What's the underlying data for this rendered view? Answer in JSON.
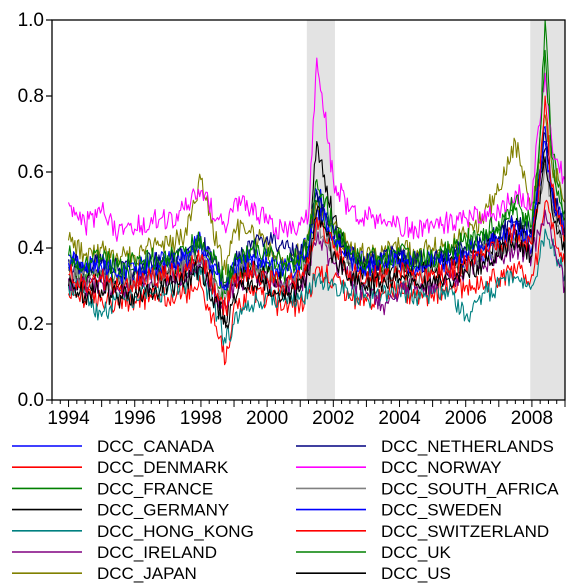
{
  "chart_data": {
    "type": "line",
    "title": "",
    "xlabel": "",
    "ylabel": "",
    "xlim": [
      1993.5,
      2009.0
    ],
    "ylim": [
      0.0,
      1.0
    ],
    "xticks": [
      1994,
      1996,
      1998,
      2000,
      2002,
      2004,
      2006,
      2008
    ],
    "xtick_labels": [
      "1994",
      "1996",
      "1998",
      "2000",
      "2002",
      "2004",
      "2006",
      "2008"
    ],
    "yticks": [
      0.0,
      0.2,
      0.4,
      0.6,
      0.8,
      1.0
    ],
    "ytick_labels": [
      "0.0",
      "0.2",
      "0.4",
      "0.6",
      "0.8",
      "1.0"
    ],
    "grid": false,
    "legend_position": "bottom",
    "shaded_periods": [
      [
        2001.2,
        2002.05
      ],
      [
        2007.95,
        2009.0
      ]
    ],
    "shade_color": "#e3e3e3",
    "x": [
      1994.0,
      1994.5,
      1995.0,
      1995.5,
      1996.0,
      1996.5,
      1997.0,
      1997.5,
      1998.0,
      1998.5,
      1998.75,
      1999.0,
      1999.5,
      2000.0,
      2000.5,
      2001.0,
      2001.25,
      2001.5,
      2002.0,
      2002.5,
      2003.0,
      2003.5,
      2004.0,
      2004.5,
      2005.0,
      2005.5,
      2006.0,
      2006.5,
      2007.0,
      2007.5,
      2008.0,
      2008.2,
      2008.4,
      2008.6,
      2008.8,
      2009.0
    ],
    "series": [
      {
        "name": "DCC_CANADA",
        "color": "#0000ff",
        "values": [
          0.38,
          0.35,
          0.36,
          0.33,
          0.34,
          0.36,
          0.37,
          0.38,
          0.42,
          0.33,
          0.3,
          0.35,
          0.37,
          0.38,
          0.35,
          0.38,
          0.42,
          0.55,
          0.44,
          0.38,
          0.36,
          0.37,
          0.38,
          0.36,
          0.37,
          0.36,
          0.38,
          0.39,
          0.4,
          0.45,
          0.4,
          0.58,
          0.72,
          0.55,
          0.5,
          0.45
        ]
      },
      {
        "name": "DCC_DENMARK",
        "color": "#ff0000",
        "values": [
          0.28,
          0.26,
          0.27,
          0.25,
          0.26,
          0.27,
          0.27,
          0.28,
          0.3,
          0.17,
          0.1,
          0.25,
          0.28,
          0.27,
          0.24,
          0.25,
          0.28,
          0.35,
          0.32,
          0.27,
          0.26,
          0.28,
          0.29,
          0.27,
          0.28,
          0.29,
          0.3,
          0.31,
          0.32,
          0.34,
          0.33,
          0.4,
          0.52,
          0.45,
          0.4,
          0.35
        ]
      },
      {
        "name": "DCC_FRANCE",
        "color": "#008000",
        "values": [
          0.35,
          0.33,
          0.34,
          0.32,
          0.33,
          0.34,
          0.35,
          0.36,
          0.4,
          0.3,
          0.28,
          0.33,
          0.36,
          0.34,
          0.33,
          0.35,
          0.4,
          0.52,
          0.43,
          0.37,
          0.35,
          0.36,
          0.37,
          0.35,
          0.36,
          0.37,
          0.4,
          0.42,
          0.45,
          0.5,
          0.45,
          0.62,
          1.0,
          0.66,
          0.56,
          0.5
        ]
      },
      {
        "name": "DCC_GERMANY",
        "color": "#000000",
        "values": [
          0.33,
          0.31,
          0.32,
          0.3,
          0.31,
          0.32,
          0.33,
          0.34,
          0.37,
          0.27,
          0.2,
          0.32,
          0.35,
          0.33,
          0.3,
          0.32,
          0.37,
          0.68,
          0.48,
          0.36,
          0.33,
          0.34,
          0.35,
          0.33,
          0.34,
          0.35,
          0.37,
          0.39,
          0.42,
          0.46,
          0.42,
          0.55,
          0.66,
          0.55,
          0.48,
          0.42
        ]
      },
      {
        "name": "DCC_HONG_KONG",
        "color": "#008080",
        "values": [
          0.3,
          0.28,
          0.22,
          0.26,
          0.27,
          0.28,
          0.29,
          0.3,
          0.33,
          0.22,
          0.15,
          0.2,
          0.24,
          0.28,
          0.26,
          0.27,
          0.29,
          0.32,
          0.3,
          0.28,
          0.27,
          0.28,
          0.29,
          0.27,
          0.28,
          0.29,
          0.22,
          0.28,
          0.3,
          0.32,
          0.3,
          0.36,
          0.45,
          0.4,
          0.37,
          0.33
        ]
      },
      {
        "name": "DCC_IRELAND",
        "color": "#800080",
        "values": [
          0.32,
          0.3,
          0.31,
          0.29,
          0.3,
          0.31,
          0.32,
          0.33,
          0.36,
          0.27,
          0.24,
          0.3,
          0.33,
          0.31,
          0.29,
          0.3,
          0.34,
          0.42,
          0.36,
          0.32,
          0.28,
          0.25,
          0.29,
          0.3,
          0.31,
          0.32,
          0.34,
          0.36,
          0.38,
          0.4,
          0.38,
          0.44,
          0.5,
          0.42,
          0.36,
          0.3
        ]
      },
      {
        "name": "DCC_JAPAN",
        "color": "#808000",
        "values": [
          0.42,
          0.38,
          0.4,
          0.37,
          0.38,
          0.4,
          0.41,
          0.43,
          0.58,
          0.4,
          0.33,
          0.45,
          0.44,
          0.4,
          0.36,
          0.39,
          0.44,
          0.52,
          0.46,
          0.4,
          0.38,
          0.39,
          0.4,
          0.38,
          0.4,
          0.41,
          0.44,
          0.48,
          0.55,
          0.68,
          0.5,
          0.62,
          0.75,
          0.62,
          0.58,
          0.52
        ]
      },
      {
        "name": "DCC_NETHERLANDS",
        "color": "#000080",
        "values": [
          0.37,
          0.35,
          0.36,
          0.34,
          0.35,
          0.36,
          0.37,
          0.38,
          0.42,
          0.34,
          0.3,
          0.36,
          0.4,
          0.43,
          0.4,
          0.38,
          0.4,
          0.55,
          0.45,
          0.38,
          0.36,
          0.37,
          0.38,
          0.36,
          0.37,
          0.38,
          0.4,
          0.41,
          0.43,
          0.47,
          0.44,
          0.58,
          0.7,
          0.56,
          0.5,
          0.45
        ]
      },
      {
        "name": "DCC_NORWAY",
        "color": "#ff00ff",
        "values": [
          0.52,
          0.46,
          0.5,
          0.44,
          0.45,
          0.48,
          0.47,
          0.5,
          0.55,
          0.48,
          0.44,
          0.52,
          0.5,
          0.47,
          0.44,
          0.46,
          0.48,
          0.9,
          0.58,
          0.5,
          0.48,
          0.47,
          0.46,
          0.45,
          0.46,
          0.47,
          0.48,
          0.49,
          0.5,
          0.55,
          0.52,
          0.72,
          0.86,
          0.68,
          0.62,
          0.58
        ]
      },
      {
        "name": "DCC_SOUTH_AFRICA",
        "color": "#808080",
        "values": [
          0.34,
          0.32,
          0.33,
          0.31,
          0.32,
          0.33,
          0.34,
          0.35,
          0.38,
          0.3,
          0.27,
          0.33,
          0.35,
          0.33,
          0.31,
          0.33,
          0.37,
          0.46,
          0.39,
          0.34,
          0.32,
          0.33,
          0.34,
          0.32,
          0.33,
          0.34,
          0.36,
          0.38,
          0.4,
          0.43,
          0.41,
          0.52,
          0.62,
          0.52,
          0.46,
          0.41
        ]
      },
      {
        "name": "DCC_SWEDEN",
        "color": "#0000ff",
        "values": [
          0.36,
          0.34,
          0.35,
          0.33,
          0.34,
          0.35,
          0.36,
          0.37,
          0.41,
          0.33,
          0.29,
          0.35,
          0.38,
          0.36,
          0.34,
          0.36,
          0.4,
          0.5,
          0.43,
          0.37,
          0.35,
          0.36,
          0.37,
          0.35,
          0.36,
          0.37,
          0.39,
          0.4,
          0.42,
          0.46,
          0.43,
          0.56,
          0.68,
          0.55,
          0.49,
          0.44
        ]
      },
      {
        "name": "DCC_SWITZERLAND",
        "color": "#ff0000",
        "values": [
          0.33,
          0.31,
          0.32,
          0.3,
          0.31,
          0.32,
          0.33,
          0.34,
          0.37,
          0.28,
          0.24,
          0.31,
          0.34,
          0.32,
          0.3,
          0.32,
          0.36,
          0.48,
          0.4,
          0.34,
          0.32,
          0.33,
          0.34,
          0.32,
          0.33,
          0.34,
          0.36,
          0.38,
          0.4,
          0.44,
          0.41,
          0.54,
          0.8,
          0.56,
          0.48,
          0.43
        ]
      },
      {
        "name": "DCC_UK",
        "color": "#008000",
        "values": [
          0.38,
          0.36,
          0.37,
          0.35,
          0.36,
          0.37,
          0.38,
          0.39,
          0.43,
          0.35,
          0.31,
          0.37,
          0.4,
          0.38,
          0.36,
          0.38,
          0.42,
          0.58,
          0.46,
          0.39,
          0.37,
          0.38,
          0.39,
          0.37,
          0.38,
          0.39,
          0.42,
          0.44,
          0.47,
          0.52,
          0.46,
          0.64,
          0.92,
          0.64,
          0.55,
          0.48
        ]
      },
      {
        "name": "DCC_US",
        "color": "#000000",
        "values": [
          0.3,
          0.28,
          0.29,
          0.27,
          0.28,
          0.29,
          0.3,
          0.31,
          0.35,
          0.25,
          0.19,
          0.28,
          0.31,
          0.3,
          0.28,
          0.29,
          0.33,
          0.5,
          0.38,
          0.32,
          0.3,
          0.31,
          0.32,
          0.3,
          0.31,
          0.32,
          0.34,
          0.36,
          0.38,
          0.42,
          0.38,
          0.52,
          0.64,
          0.5,
          0.44,
          0.38
        ]
      }
    ]
  }
}
